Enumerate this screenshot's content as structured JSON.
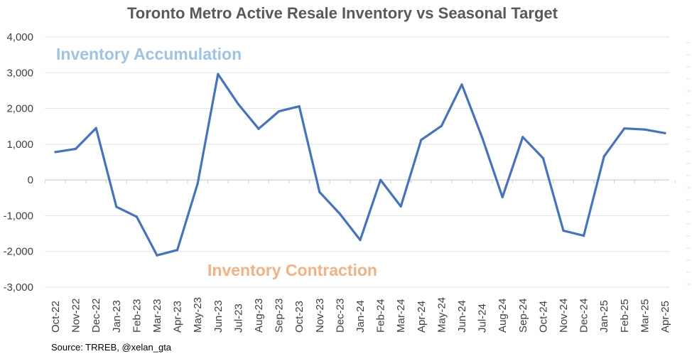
{
  "chart_data": {
    "type": "line",
    "title": "Toronto Metro Active Resale Inventory vs Seasonal Target",
    "xlabel": "",
    "ylabel": "",
    "ylim": [
      -3000,
      4000
    ],
    "yticks": [
      4000,
      3000,
      2000,
      1000,
      0,
      -1000,
      -2000,
      -3000
    ],
    "ytick_labels": [
      "4,000",
      "3,000",
      "2,000",
      "1,000",
      "0",
      "-1,000",
      "-2,000",
      "-3,000"
    ],
    "grid": true,
    "categories": [
      "Oct-22",
      "Nov-22",
      "Dec-22",
      "Jan-23",
      "Feb-23",
      "Mar-23",
      "Apr-23",
      "May-23",
      "Jun-23",
      "Jul-23",
      "Aug-23",
      "Sep-23",
      "Oct-23",
      "Nov-23",
      "Dec-23",
      "Jan-24",
      "Feb-24",
      "Mar-24",
      "Apr-24",
      "May-24",
      "Jun-24",
      "Jul-24",
      "Aug-24",
      "Sep-24",
      "Oct-24",
      "Nov-24",
      "Dec-24",
      "Jan-25",
      "Feb-25",
      "Mar-25",
      "Apr-25"
    ],
    "series": [
      {
        "name": "Active Resale Inventory vs Seasonal Target",
        "color": "#4472C4",
        "values": [
          780,
          870,
          1450,
          -750,
          -1030,
          -2110,
          -1960,
          -100,
          2960,
          2120,
          1430,
          1920,
          2060,
          -340,
          -950,
          -1680,
          0,
          -740,
          1120,
          1510,
          2670,
          1190,
          -480,
          1200,
          610,
          -1420,
          -1560,
          660,
          1440,
          1410,
          1310
        ]
      }
    ],
    "annotations": [
      {
        "text": "Inventory Accumulation",
        "color": "#9DC3E6"
      },
      {
        "text": "Inventory Contraction",
        "color": "#F4B183"
      }
    ],
    "source": "Source: TRREB, @xelan_gta"
  }
}
